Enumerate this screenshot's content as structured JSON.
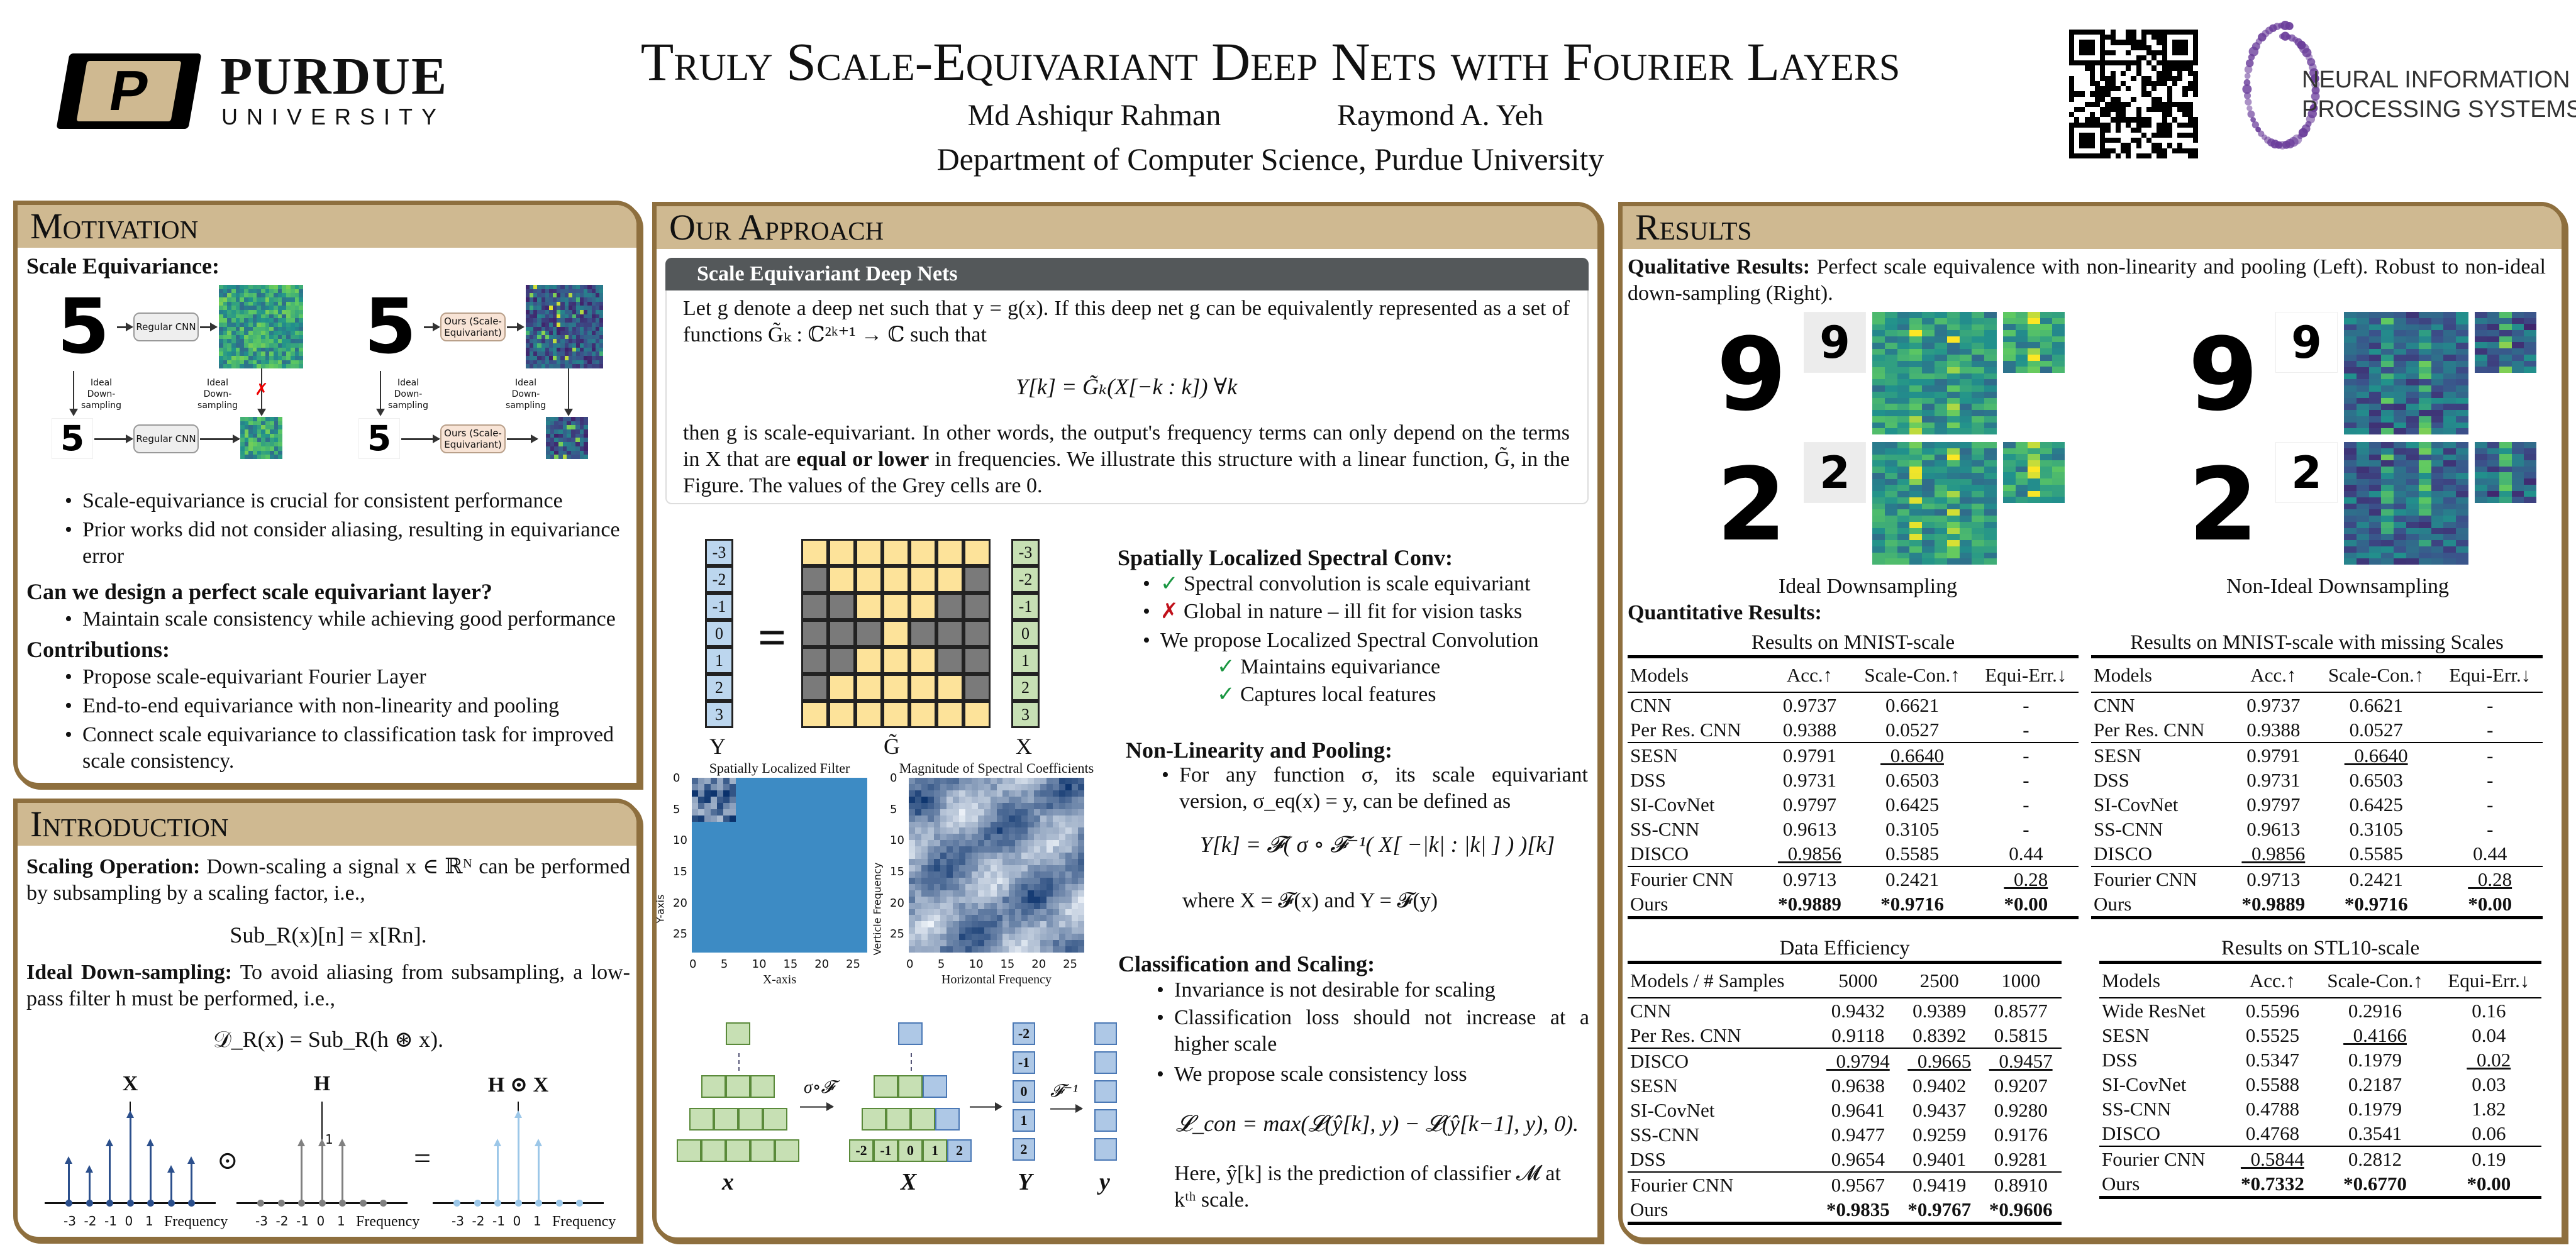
{
  "header": {
    "logo_left": {
      "word1": "PURDUE",
      "word2": "UNIVERSITY",
      "mark": "P",
      "color": "#cfb991"
    },
    "title": "Truly Scale-Equivariant Deep Nets with Fourier Layers",
    "authors": [
      "Md Ashiqur Rahman",
      "Raymond A. Yeh"
    ],
    "affiliation": "Department of Computer Science, Purdue University",
    "qr_icon": "qr-code",
    "logo_right": {
      "line1": "NEURAL INFORMATION",
      "line2": "PROCESSING SYSTEMS",
      "color": "#6a3d9a"
    }
  },
  "colors": {
    "panel_border": "#8e6f3e",
    "panel_header": "#cfb991",
    "subsection_bar": "#54585a",
    "check": "#1a9641",
    "cross": "#c0101a"
  },
  "motivation": {
    "title": "Motivation",
    "h1": "Scale Equivariance:",
    "figure": {
      "regular": "Regular CNN",
      "ours": "Ours (Scale-Equivariant)",
      "down": "Ideal Down-sampling",
      "digit": "5",
      "cross": "✗"
    },
    "bullets1": [
      "Scale-equivariance is crucial for consistent performance",
      "Prior works did not consider aliasing, resulting in equivariance error"
    ],
    "h2": "Can we design a perfect scale equivariant layer?",
    "bullets2": [
      "Maintain scale consistency while achieving good performance"
    ],
    "h3": "Contributions:",
    "bullets3": [
      "Propose scale-equivariant Fourier Layer",
      "End-to-end equivariance with non-linearity and pooling",
      "Connect scale equivariance to classification task for improved scale consistency."
    ]
  },
  "introduction": {
    "title": "Introduction",
    "p1_bold": "Scaling Operation:",
    "p1": "Down-scaling a signal x ∈ ℝᴺ can be performed by subsampling by a scaling factor, i.e.,",
    "eq1": "Sub_R(x)[n] = x[Rn].",
    "p2_bold": "Ideal Down-sampling:",
    "p2": "To avoid aliasing from subsampling, a low-pass filter h must be performed, i.e.,",
    "eq2": "𝒟_R(x) = Sub_R(h ⊛ x).",
    "plots": [
      {
        "title": "X",
        "values": [
          0.7,
          0.55,
          1,
          1.48,
          1,
          0.55,
          0.7
        ],
        "color": "#2b4f8c"
      },
      {
        "title": "H",
        "values": [
          0,
          0,
          1,
          1,
          1,
          0,
          0
        ],
        "color": "#808080",
        "peak_label": "1"
      },
      {
        "title": "H ⊙ X",
        "values": [
          0,
          0,
          1,
          1.48,
          1,
          0,
          0
        ],
        "color": "#9cc7e8"
      }
    ],
    "ticks": [
      "-3",
      "-2",
      "-1",
      "0",
      "1"
    ],
    "xlabel": "Frequency",
    "op1": "⊙",
    "op2": "="
  },
  "approach": {
    "title": "Our Approach",
    "sub": "Scale Equivariant Deep Nets",
    "p1": "Let g denote a deep net such that y = g(x). If this deep net g can be equivalently represented as a set of functions G̃ₖ : ℂ²ᵏ⁺¹ → ℂ such that",
    "eq1": "Y[k] = G̃ₖ(X[−k : k])  ∀k",
    "p2a": "then g is scale-equivariant. In other words, the output's frequency terms can only depend on the terms in X that are ",
    "p2b": "equal or lower",
    "p2c": " in frequencies. We illustrate this structure with a linear function, G̃, in the Figure. The values of the Grey cells are 0.",
    "matrix": {
      "indices": [
        "-3",
        "-2",
        "-1",
        "0",
        "1",
        "2",
        "3"
      ],
      "labels": [
        "Y",
        "G̃",
        "X"
      ],
      "eq": "=",
      "mask": [
        [
          1,
          1,
          1,
          1,
          1,
          1,
          1
        ],
        [
          0,
          1,
          1,
          1,
          1,
          1,
          0
        ],
        [
          0,
          0,
          1,
          1,
          1,
          0,
          0
        ],
        [
          0,
          0,
          0,
          1,
          0,
          0,
          0
        ],
        [
          0,
          0,
          1,
          1,
          1,
          0,
          0
        ],
        [
          0,
          1,
          1,
          1,
          1,
          1,
          0
        ],
        [
          1,
          1,
          1,
          1,
          1,
          1,
          1
        ]
      ],
      "yellow": "#fde39a",
      "grey": "#7a7a7a",
      "blue": "#bcd6ee",
      "green": "#c7e0b4"
    },
    "heat1": {
      "title": "Spatially Localized Filter",
      "xlabel": "X-axis",
      "ylabel": "Y-axis",
      "yticks": [
        "0",
        "5",
        "10",
        "15",
        "20",
        "25"
      ],
      "xticks": [
        "0",
        "5",
        "10",
        "15",
        "20",
        "25"
      ]
    },
    "heat2": {
      "title": "Magnitude of Spectral Coefficients",
      "xlabel": "Horizontal Frequency",
      "ylabel": "Verticle Frequency",
      "yticks": [
        "0",
        "5",
        "10",
        "15",
        "20",
        "25"
      ],
      "xticks": [
        "0",
        "5",
        "10",
        "15",
        "20",
        "25"
      ]
    },
    "slsc": {
      "h": "Spatially Localized Spectral Conv:",
      "b1": "Spectral convolution is scale equivariant",
      "b2": "Global in nature – ill fit for vision tasks",
      "b3": "We propose Localized Spectral Convolution",
      "s1": "Maintains equivariance",
      "s2": "Captures local features",
      "check": "✓",
      "cross": "✗"
    },
    "nlp": {
      "h": "Non-Linearity and Pooling:",
      "b1": "For any function σ, its scale equivariant version, σ_eq(x) = y, can be defined as",
      "eq": "Y[k] = 𝓕( σ ∘ 𝓕⁻¹( X[ −|k| : |k| ] ) )[k]",
      "where": "where X = 𝓕(x) and Y = 𝓕(y)"
    },
    "cls": {
      "h": "Classification and Scaling:",
      "b1": "Invariance is not desirable for scaling",
      "b2": "Classification loss should not increase at a higher scale",
      "b3": "We propose scale consistency loss",
      "eq": "𝓛_con = max(𝓛(ŷ[k], y) − 𝓛(ŷ[k−1], y), 0).",
      "here": "Here, ŷ[k] is the prediction of classifier 𝓜 at kᵗʰ scale."
    },
    "diagram": {
      "x": "x",
      "X": "X",
      "Y": "Y",
      "y": "y",
      "op1": "σ∘𝓕",
      "op2": "𝓕⁻¹",
      "row_idx": [
        "-2",
        "-1",
        "0",
        "1",
        "2"
      ],
      "col_idx": [
        "-2",
        "-1",
        "0",
        "1",
        "2"
      ]
    }
  },
  "results": {
    "title": "Results",
    "qual_bold": "Qualitative Results:",
    "qual": "Perfect scale equivalence with non-linearity and pooling (Left). Robust to non-ideal down-sampling (Right).",
    "digits": [
      "9",
      "2"
    ],
    "cap_left": "Ideal Downsampling",
    "cap_right": "Non-Ideal Downsampling",
    "quant": "Quantitative Results:",
    "tables": [
      {
        "caption": "Results on MNIST-scale",
        "header": [
          "Models",
          "Acc.↑",
          "Scale-Con.↑",
          "Equi-Err.↓"
        ],
        "groups": [
          [
            [
              "CNN",
              "0.9737",
              "0.6621",
              "-"
            ],
            [
              "Per Res. CNN",
              "0.9388",
              "0.0527",
              "-"
            ]
          ],
          [
            [
              "SESN",
              "0.9791",
              "_0.6640",
              "-"
            ],
            [
              "DSS",
              "0.9731",
              "0.6503",
              "-"
            ],
            [
              "SI-CovNet",
              "0.9797",
              "0.6425",
              "-"
            ],
            [
              "SS-CNN",
              "0.9613",
              "0.3105",
              "-"
            ],
            [
              "DISCO",
              "_0.9856",
              "0.5585",
              "0.44"
            ]
          ],
          [
            [
              "Fourier CNN",
              "0.9713",
              "0.2421",
              "_0.28"
            ],
            [
              "Ours",
              "*0.9889",
              "*0.9716",
              "*0.00"
            ]
          ]
        ]
      },
      {
        "caption": "Results on MNIST-scale with missing Scales",
        "header": [
          "Models",
          "Acc.↑",
          "Scale-Con.↑",
          "Equi-Err.↓"
        ],
        "groups": [
          [
            [
              "CNN",
              "0.9737",
              "0.6621",
              "-"
            ],
            [
              "Per Res. CNN",
              "0.9388",
              "0.0527",
              "-"
            ]
          ],
          [
            [
              "SESN",
              "0.9791",
              "_0.6640",
              "-"
            ],
            [
              "DSS",
              "0.9731",
              "0.6503",
              "-"
            ],
            [
              "SI-CovNet",
              "0.9797",
              "0.6425",
              "-"
            ],
            [
              "SS-CNN",
              "0.9613",
              "0.3105",
              "-"
            ],
            [
              "DISCO",
              "_0.9856",
              "0.5585",
              "0.44"
            ]
          ],
          [
            [
              "Fourier CNN",
              "0.9713",
              "0.2421",
              "_0.28"
            ],
            [
              "Ours",
              "*0.9889",
              "*0.9716",
              "*0.00"
            ]
          ]
        ]
      },
      {
        "caption": "Data Efficiency",
        "header": [
          "Models / # Samples",
          "5000",
          "2500",
          "1000"
        ],
        "groups": [
          [
            [
              "CNN",
              "0.9432",
              "0.9389",
              "0.8577"
            ],
            [
              "Per Res. CNN",
              "0.9118",
              "0.8392",
              "0.5815"
            ]
          ],
          [
            [
              "DISCO",
              "_0.9794",
              "_0.9665",
              "_0.9457"
            ],
            [
              "SESN",
              "0.9638",
              "0.9402",
              "0.9207"
            ],
            [
              "SI-CovNet",
              "0.9641",
              "0.9437",
              "0.9280"
            ],
            [
              "SS-CNN",
              "0.9477",
              "0.9259",
              "0.9176"
            ],
            [
              "DSS",
              "0.9654",
              "0.9401",
              "0.9281"
            ]
          ],
          [
            [
              "Fourier CNN",
              "0.9567",
              "0.9419",
              "0.8910"
            ],
            [
              "Ours",
              "*0.9835",
              "*0.9767",
              "*0.9606"
            ]
          ]
        ]
      },
      {
        "caption": "Results on STL10-scale",
        "header": [
          "Models",
          "Acc.↑",
          "Scale-Con.↑",
          "Equi-Err.↓"
        ],
        "groups": [
          [
            [
              "Wide ResNet",
              "0.5596",
              "0.2916",
              "0.16"
            ],
            [
              "SESN",
              "0.5525",
              "_0.4166",
              "0.04"
            ],
            [
              "DSS",
              "0.5347",
              "0.1979",
              "_0.02"
            ],
            [
              "SI-CovNet",
              "0.5588",
              "0.2187",
              "0.03"
            ],
            [
              "SS-CNN",
              "0.4788",
              "0.1979",
              "1.82"
            ],
            [
              "DISCO",
              "0.4768",
              "0.3541",
              "0.06"
            ]
          ],
          [
            [
              "Fourier CNN",
              "_0.5844",
              "0.2812",
              "0.19"
            ],
            [
              "Ours",
              "*0.7332",
              "*0.6770",
              "*0.00"
            ]
          ]
        ]
      }
    ]
  }
}
